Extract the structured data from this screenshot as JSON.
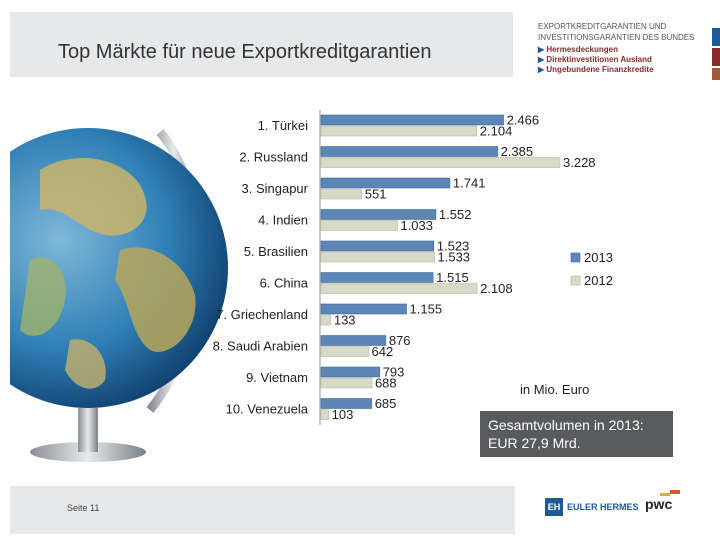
{
  "header": {
    "title": "Top Märkte für neue Exportkreditgarantien",
    "brand_line1": "EXPORTKREDITGARANTIEN UND",
    "brand_line2": "INVESTITIONSGARANTIEN DES BUNDES",
    "brand_items": [
      "Hermesdeckungen",
      "Direktinvestitionen Ausland",
      "Ungebundene Finanzkredite"
    ],
    "brand_marker": "▶"
  },
  "footer": {
    "page": "Seite 11",
    "logo_eh_mark": "EH",
    "logo_eh_text": "EULER HERMES",
    "logo_pwc": "pwc"
  },
  "notes": {
    "unit": "in Mio. Euro",
    "total_line1": "Gesamtvolumen in 2013:",
    "total_line2": "EUR 27,9 Mrd."
  },
  "colors": {
    "series_2013": "#5b86b5",
    "series_2012": "#d9d9c8",
    "band": "#e7e8e9",
    "total_box": "#595a5c"
  },
  "chart_data": {
    "type": "bar",
    "orientation": "horizontal",
    "categories": [
      "1.  Türkei",
      "2.  Russland",
      "3.  Singapur",
      "4.  Indien",
      "5.  Brasilien",
      "6.  China",
      "7.  Griechenland",
      "8.  Saudi Arabien",
      "9.  Vietnam",
      "10.  Venezuela"
    ],
    "series": [
      {
        "name": "2013",
        "values": [
          2466,
          2385,
          1741,
          1552,
          1523,
          1515,
          1155,
          876,
          793,
          685
        ],
        "labels": [
          "2.466",
          "2.385",
          "1.741",
          "1.552",
          "1.523",
          "1.515",
          "1.155",
          "876",
          "793",
          "685"
        ]
      },
      {
        "name": "2012",
        "values": [
          2104,
          3228,
          551,
          1033,
          1533,
          2108,
          133,
          642,
          688,
          103
        ],
        "labels": [
          "2.104",
          "3.228",
          "551",
          "1.033",
          "1.533",
          "2.108",
          "133",
          "642",
          "688",
          "103"
        ]
      }
    ],
    "legend_position": "right",
    "xlim": [
      0,
      3228
    ],
    "grid": false
  }
}
